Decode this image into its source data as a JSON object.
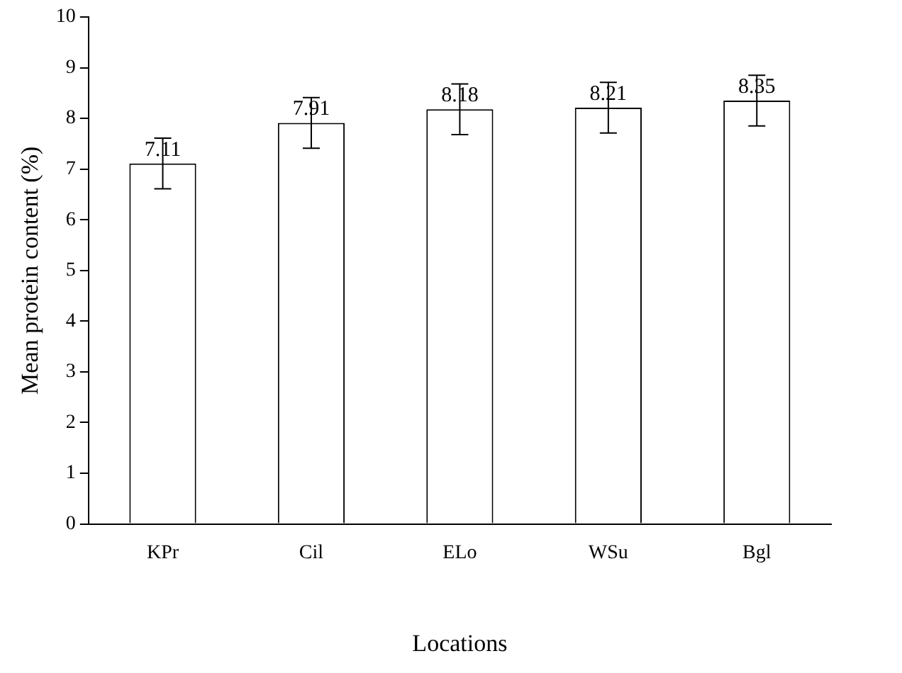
{
  "chart_data": {
    "type": "bar",
    "xlabel": "Locations",
    "ylabel": "Mean protein content (%)",
    "categories": [
      "KPr",
      "Cil",
      "ELo",
      "WSu",
      "Bgl"
    ],
    "values": [
      7.11,
      7.91,
      8.18,
      8.21,
      8.35
    ],
    "errors": [
      0.5,
      0.5,
      0.5,
      0.5,
      0.5
    ],
    "color": "#ffffff",
    "ylim": [
      0,
      10
    ],
    "yticks": [
      0,
      1,
      2,
      3,
      4,
      5,
      6,
      7,
      8,
      9,
      10
    ],
    "data_labels": true,
    "grid": false,
    "legend": false
  }
}
